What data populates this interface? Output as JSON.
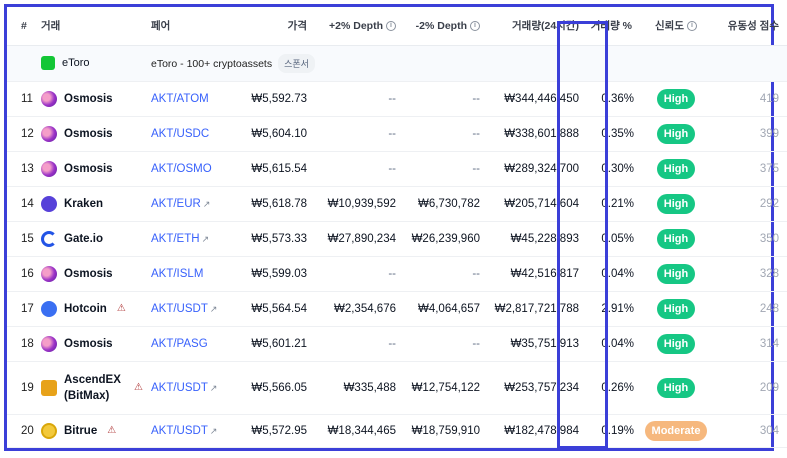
{
  "headers": {
    "rank": "#",
    "exchange": "거래",
    "pair": "페어",
    "price": "가격",
    "depth_plus": "+2% Depth",
    "depth_minus": "-2% Depth",
    "volume": "거래량(24시간)",
    "volume_pct": "거래량 %",
    "confidence": "신뢰도",
    "liquidity": "유동성 점수"
  },
  "sponsor": {
    "exchange": "eToro",
    "description": "eToro - 100+ cryptoassets",
    "badge": "스폰서"
  },
  "rows": [
    {
      "rank": "11",
      "exchange": "Osmosis",
      "logo": "osmosis",
      "pair": "AKT/ATOM",
      "external": false,
      "warn": false,
      "price": "₩5,592.73",
      "depth_plus": "--",
      "depth_minus": "--",
      "volume": "₩344,446,450",
      "volume_pct": "0.36%",
      "confidence": "High",
      "liquidity": "419"
    },
    {
      "rank": "12",
      "exchange": "Osmosis",
      "logo": "osmosis",
      "pair": "AKT/USDC",
      "external": false,
      "warn": false,
      "price": "₩5,604.10",
      "depth_plus": "--",
      "depth_minus": "--",
      "volume": "₩338,601,888",
      "volume_pct": "0.35%",
      "confidence": "High",
      "liquidity": "399"
    },
    {
      "rank": "13",
      "exchange": "Osmosis",
      "logo": "osmosis",
      "pair": "AKT/OSMO",
      "external": false,
      "warn": false,
      "price": "₩5,615.54",
      "depth_plus": "--",
      "depth_minus": "--",
      "volume": "₩289,324,700",
      "volume_pct": "0.30%",
      "confidence": "High",
      "liquidity": "375"
    },
    {
      "rank": "14",
      "exchange": "Kraken",
      "logo": "kraken",
      "pair": "AKT/EUR",
      "external": true,
      "warn": false,
      "price": "₩5,618.78",
      "depth_plus": "₩10,939,592",
      "depth_minus": "₩6,730,782",
      "volume": "₩205,714,604",
      "volume_pct": "0.21%",
      "confidence": "High",
      "liquidity": "292"
    },
    {
      "rank": "15",
      "exchange": "Gate.io",
      "logo": "gate",
      "pair": "AKT/ETH",
      "external": true,
      "warn": false,
      "price": "₩5,573.33",
      "depth_plus": "₩27,890,234",
      "depth_minus": "₩26,239,960",
      "volume": "₩45,228,893",
      "volume_pct": "0.05%",
      "confidence": "High",
      "liquidity": "350"
    },
    {
      "rank": "16",
      "exchange": "Osmosis",
      "logo": "osmosis",
      "pair": "AKT/ISLM",
      "external": false,
      "warn": false,
      "price": "₩5,599.03",
      "depth_plus": "--",
      "depth_minus": "--",
      "volume": "₩42,516,817",
      "volume_pct": "0.04%",
      "confidence": "High",
      "liquidity": "328"
    },
    {
      "rank": "17",
      "exchange": "Hotcoin",
      "logo": "hotcoin",
      "pair": "AKT/USDT",
      "external": true,
      "warn": true,
      "price": "₩5,564.54",
      "depth_plus": "₩2,354,676",
      "depth_minus": "₩4,064,657",
      "volume": "₩2,817,721,788",
      "volume_pct": "2.91%",
      "confidence": "High",
      "liquidity": "248"
    },
    {
      "rank": "18",
      "exchange": "Osmosis",
      "logo": "osmosis",
      "pair": "AKT/PASG",
      "external": false,
      "warn": false,
      "price": "₩5,601.21",
      "depth_plus": "--",
      "depth_minus": "--",
      "volume": "₩35,751,913",
      "volume_pct": "0.04%",
      "confidence": "High",
      "liquidity": "314"
    },
    {
      "rank": "19",
      "exchange": "AscendEX (BitMax)",
      "logo": "ascend",
      "pair": "AKT/USDT",
      "external": true,
      "warn": true,
      "price": "₩5,566.05",
      "depth_plus": "₩335,488",
      "depth_minus": "₩12,754,122",
      "volume": "₩253,757,234",
      "volume_pct": "0.26%",
      "confidence": "High",
      "liquidity": "209"
    },
    {
      "rank": "20",
      "exchange": "Bitrue",
      "logo": "bitrue",
      "pair": "AKT/USDT",
      "external": true,
      "warn": true,
      "price": "₩5,572.95",
      "depth_plus": "₩18,344,465",
      "depth_minus": "₩18,759,910",
      "volume": "₩182,478,984",
      "volume_pct": "0.19%",
      "confidence": "Moderate",
      "liquidity": "304"
    }
  ],
  "colors": {
    "highlight": "#3b3fd8",
    "high": "#16c784",
    "moderate": "#f6b87e",
    "link": "#3861fb"
  }
}
